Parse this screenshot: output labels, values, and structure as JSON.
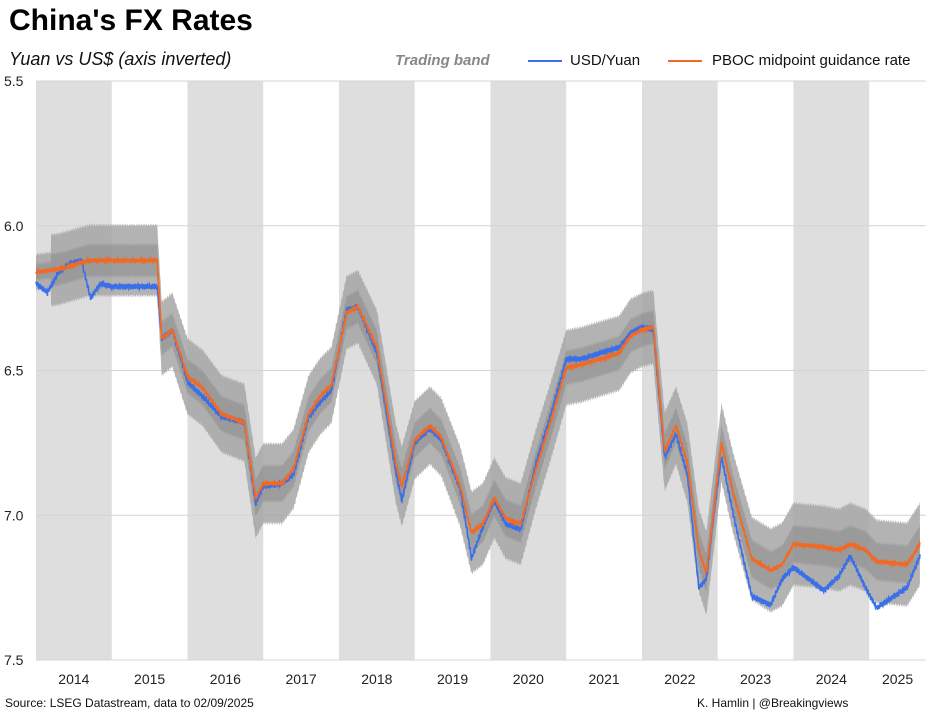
{
  "title": "China's FX Rates",
  "subtitle": "Yuan vs US$ (axis inverted)",
  "source": "Source: LSEG Datastream, data to 02/09/2025",
  "credit": "K. Hamlin | @Breakingviews",
  "legend": {
    "band_label": "Trading band",
    "usd_label": "USD/Yuan",
    "pboc_label": "PBOC midpoint guidance rate"
  },
  "colors": {
    "usd": "#3a6fe8",
    "pboc": "#f06a26",
    "band": "#a6a6a6",
    "band_narrow": "#8a8a8a",
    "year_shade": "#dedede",
    "grid": "#d4d4d4"
  },
  "chart_data": {
    "type": "line",
    "y_inverted": true,
    "ylim": [
      5.5,
      7.5
    ],
    "yticks": [
      "5.5",
      "6.0",
      "6.5",
      "7.0",
      "7.5"
    ],
    "xlim": [
      2014.0,
      2025.75
    ],
    "xticks": [
      "2014",
      "2015",
      "2016",
      "2017",
      "2018",
      "2019",
      "2020",
      "2021",
      "2022",
      "2023",
      "2024",
      "2025"
    ],
    "shaded_years": [
      2014,
      2016,
      2018,
      2020,
      2022,
      2024
    ],
    "band_width": [
      {
        "from": 2014.0,
        "to": 2014.2,
        "pct": 1
      },
      {
        "from": 2014.2,
        "to": 2025.75,
        "pct": 2
      }
    ],
    "series": [
      {
        "name": "PBOC midpoint guidance rate",
        "x": [
          2014.0,
          2014.3,
          2014.7,
          2015.0,
          2015.35,
          2015.6,
          2015.66,
          2015.8,
          2016.0,
          2016.2,
          2016.45,
          2016.75,
          2016.9,
          2017.0,
          2017.25,
          2017.4,
          2017.6,
          2017.75,
          2017.9,
          2018.1,
          2018.25,
          2018.5,
          2018.75,
          2018.83,
          2019.0,
          2019.2,
          2019.35,
          2019.6,
          2019.75,
          2019.9,
          2020.05,
          2020.2,
          2020.4,
          2020.6,
          2020.8,
          2021.0,
          2021.2,
          2021.45,
          2021.7,
          2021.85,
          2022.0,
          2022.15,
          2022.3,
          2022.45,
          2022.6,
          2022.75,
          2022.85,
          2022.95,
          2023.05,
          2023.2,
          2023.45,
          2023.7,
          2023.85,
          2024.0,
          2024.4,
          2024.6,
          2024.75,
          2024.95,
          2025.1,
          2025.5,
          2025.67
        ],
        "values": [
          6.16,
          6.15,
          6.12,
          6.12,
          6.12,
          6.12,
          6.39,
          6.36,
          6.52,
          6.56,
          6.65,
          6.68,
          6.94,
          6.89,
          6.89,
          6.84,
          6.65,
          6.59,
          6.55,
          6.3,
          6.28,
          6.42,
          6.82,
          6.9,
          6.74,
          6.69,
          6.73,
          6.9,
          7.06,
          7.03,
          6.94,
          7.01,
          7.03,
          6.84,
          6.67,
          6.49,
          6.48,
          6.46,
          6.44,
          6.38,
          6.36,
          6.35,
          6.78,
          6.69,
          6.82,
          7.12,
          7.2,
          6.98,
          6.75,
          6.92,
          7.15,
          7.19,
          7.17,
          7.1,
          7.11,
          7.12,
          7.1,
          7.12,
          7.16,
          7.17,
          7.1
        ]
      },
      {
        "name": "USD/Yuan",
        "x": [
          2014.0,
          2014.15,
          2014.3,
          2014.45,
          2014.6,
          2014.72,
          2014.85,
          2015.0,
          2015.35,
          2015.6,
          2015.66,
          2015.8,
          2016.0,
          2016.2,
          2016.45,
          2016.75,
          2016.9,
          2017.0,
          2017.25,
          2017.4,
          2017.6,
          2017.75,
          2017.9,
          2018.1,
          2018.25,
          2018.5,
          2018.75,
          2018.83,
          2019.0,
          2019.2,
          2019.35,
          2019.6,
          2019.75,
          2019.9,
          2020.05,
          2020.2,
          2020.4,
          2020.6,
          2020.8,
          2021.0,
          2021.2,
          2021.45,
          2021.7,
          2021.85,
          2022.0,
          2022.15,
          2022.3,
          2022.45,
          2022.6,
          2022.75,
          2022.85,
          2022.95,
          2023.05,
          2023.2,
          2023.45,
          2023.7,
          2023.85,
          2024.0,
          2024.4,
          2024.6,
          2024.75,
          2024.95,
          2025.1,
          2025.5,
          2025.67
        ],
        "values": [
          6.2,
          6.23,
          6.16,
          6.13,
          6.12,
          6.25,
          6.2,
          6.21,
          6.21,
          6.21,
          6.39,
          6.36,
          6.54,
          6.59,
          6.66,
          6.68,
          6.96,
          6.9,
          6.89,
          6.86,
          6.66,
          6.61,
          6.57,
          6.29,
          6.28,
          6.44,
          6.85,
          6.95,
          6.75,
          6.7,
          6.74,
          6.91,
          7.15,
          7.04,
          6.95,
          7.03,
          7.05,
          6.82,
          6.65,
          6.46,
          6.46,
          6.44,
          6.42,
          6.37,
          6.35,
          6.36,
          6.8,
          6.72,
          6.86,
          7.25,
          7.22,
          6.99,
          6.8,
          6.99,
          7.28,
          7.31,
          7.22,
          7.18,
          7.26,
          7.21,
          7.14,
          7.25,
          7.32,
          7.25,
          7.14
        ]
      }
    ]
  }
}
